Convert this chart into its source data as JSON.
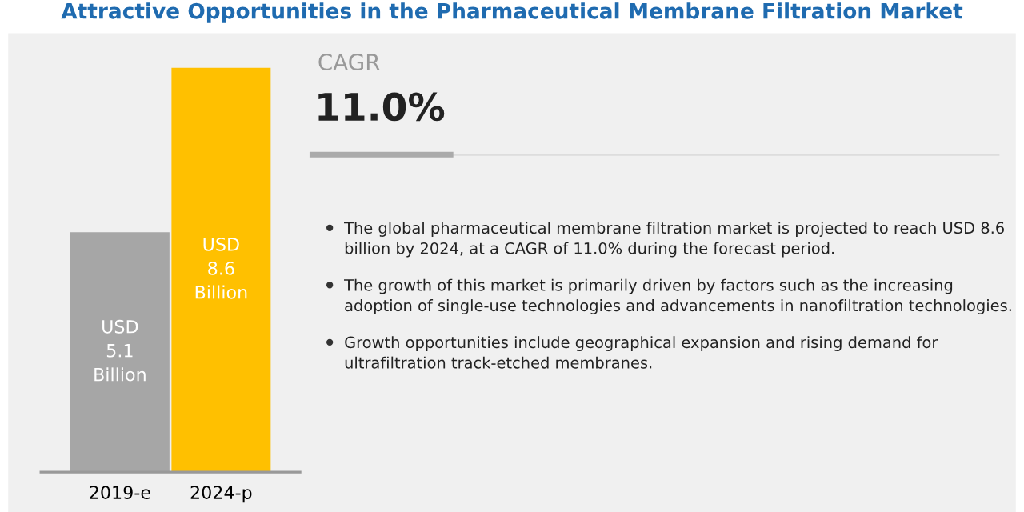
{
  "chart_data": [
    {
      "type": "bar",
      "title": "Attractive Opportunities in the Pharmaceutical Membrane Filtration Market",
      "categories": [
        "2019-e",
        "2024-p"
      ],
      "values": [
        5.1,
        8.6
      ],
      "colors": [
        "#a6a6a6",
        "#ffc000"
      ],
      "value_labels": [
        "USD\n5.1\nBillion",
        "USD\n8.6\nBillion"
      ]
    },
    {
      "type": "other",
      "subtitle": "CAGR",
      "title": "11.0%",
      "annotations": [
        "The global pharmaceutical membrane filtration market is projected to reach USD 8.6 billion by 2024, at a CAGR of 11.0% during the forecast period.",
        "The growth of this market is primarily driven by factors such as the increasing adoption of single-use technologies and advancements in nanofiltration technologies.",
        "Growth opportunities include geographical expansion and rising demand for ultrafiltration track-etched membranes."
      ]
    }
  ]
}
